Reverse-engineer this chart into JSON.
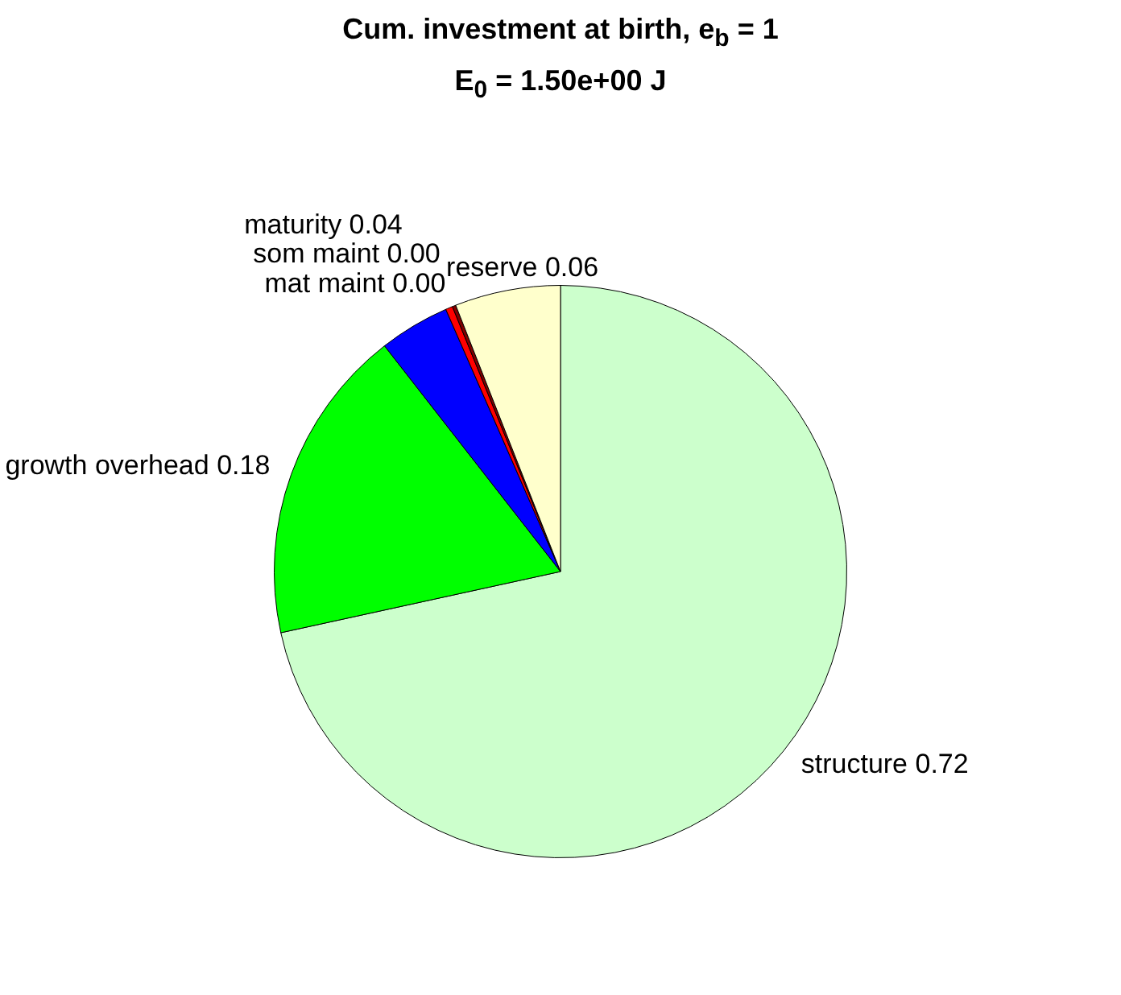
{
  "chart_data": {
    "type": "pie",
    "title": "Cum. investment at birth, e$_{b}$ = 1",
    "subtitle": "E$_{0}$ = 1.50e+00 J",
    "categories": [
      "structure",
      "growth overhead",
      "maturity",
      "som maint",
      "mat maint",
      "reserve"
    ],
    "values": [
      0.72,
      0.18,
      0.04,
      0.004,
      0.002,
      0.06
    ],
    "value_labels": [
      "0.72",
      "0.18",
      "0.04",
      "0.00",
      "0.00",
      "0.06"
    ],
    "colors": [
      "#ccffcc",
      "#00ff00",
      "#0000ff",
      "#ff0000",
      "#800000",
      "#ffffcc"
    ],
    "legend": false
  }
}
